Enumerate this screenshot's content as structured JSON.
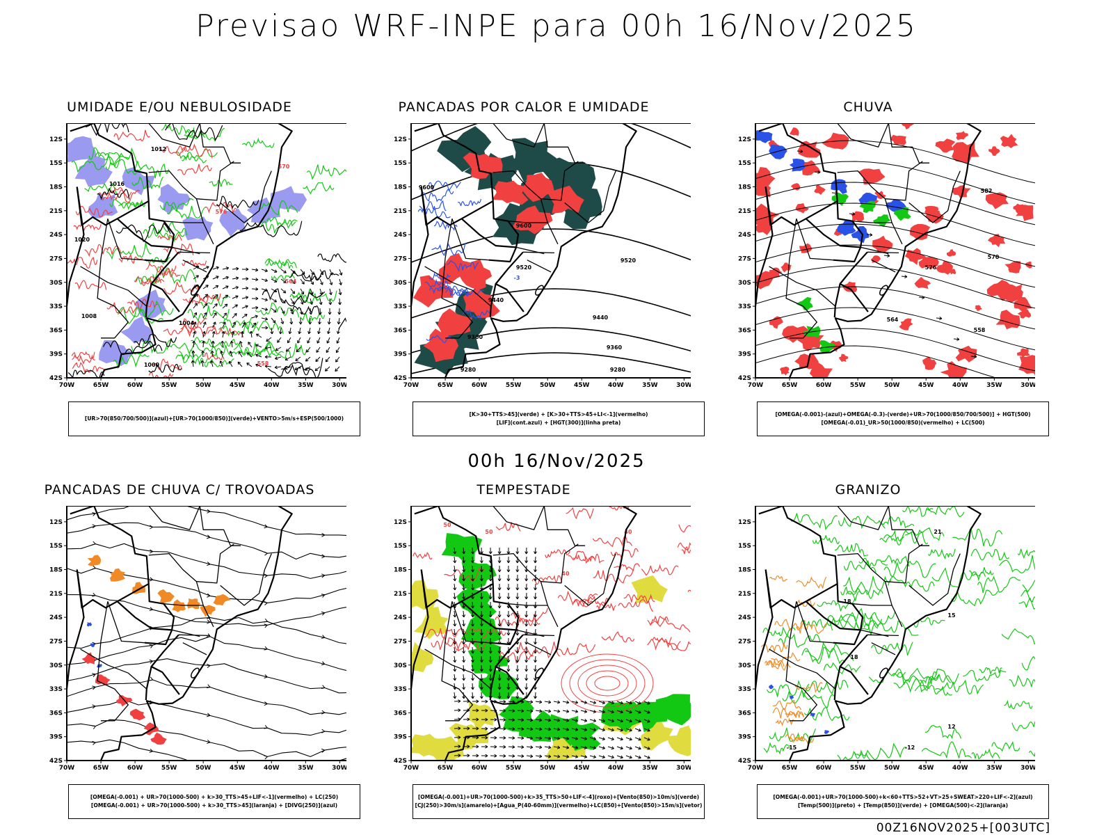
{
  "header": {
    "title": "Previsao WRF-INPE  para 00h 16/Nov/2025"
  },
  "mid_title": "00h 16/Nov/2025",
  "footer": "00Z16NOV2025+[003UTC]",
  "axes": {
    "lat_labels": [
      "12S",
      "15S",
      "18S",
      "21S",
      "24S",
      "27S",
      "30S",
      "33S",
      "36S",
      "39S",
      "42S"
    ],
    "lon_labels": [
      "70W",
      "65W",
      "60W",
      "55W",
      "50W",
      "45W",
      "40W",
      "35W",
      "30W"
    ]
  },
  "panels": [
    {
      "title": "UMIDADE E/OU NEBULOSIDADE",
      "legend": [
        "[UR>70(850/700/500)](azul)+[UR>70(1000/850)](verde)+VENTO>5m/s+ESP(500/1000)"
      ],
      "contour_labels": [
        "1012",
        "1016",
        "1008",
        "1004",
        "1000",
        "1020",
        "576",
        "570",
        "564",
        "558"
      ]
    },
    {
      "title": "PANCADAS POR CALOR E UMIDADE",
      "legend": [
        "[K>30+TTS>45](verde) + [K>30+TTS>45+LI<-1](vermelho)",
        "[LIF](cont.azul) + [HGT(300)](linha preta)"
      ],
      "contour_labels": [
        "9600",
        "9520",
        "9440",
        "9360",
        "9280",
        "-3"
      ]
    },
    {
      "title": "CHUVA",
      "legend": [
        "[OMEGA(-0.001)-(azul)+OMEGA(-0.3)-(verde)+UR>70(1000/850/700/500)] + HGT(500)",
        "[OMEGA(-0.01)_UR>50(1000/850)(vermelho) + LC(500)"
      ],
      "contour_labels": [
        "582",
        "576",
        "570",
        "564",
        "558"
      ]
    },
    {
      "title": "PANCADAS DE CHUVA C/ TROVOADAS",
      "legend": [
        "[OMEGA(-0.001) + UR>70(1000-500) + k>30_TTS>45+LIF<-1](vermelho) + LC(250)",
        "[OMEGA(-0.001) + UR>70(1000-500) + k>30_TTS>45](laranja) + [DIVG(250)](azul)"
      ],
      "contour_labels": []
    },
    {
      "title": "TEMPESTADE",
      "legend": [
        "[OMEGA(-0.001)+UR>70(1000-500)+k>35_TTS>50+LIF<-4](roxo)+[Vento(850)>10m/s](verde)",
        "[CJ(250)>30m/s](amarelo)+[Agua_P(40-60mm)](vermelho)+LC(850)+[Vento(850)>15m/s](vetor)"
      ],
      "contour_labels": [
        "50",
        "40"
      ]
    },
    {
      "title": "GRANIZO",
      "legend": [
        "[OMEGA(-0.001)+UR>70(1000-500)+k<60+TTS>52+VT>25+SWEAT>220+LIF<-2](azul)",
        "[Temp(500)](preto) + [Temp(850)](verde) + [OMEGA(500)<-2](laranja)"
      ],
      "contour_labels": [
        "21",
        "18",
        "15",
        "12",
        "-15",
        "-12"
      ]
    }
  ],
  "colors": {
    "blue": "#2a52e6",
    "green": "#12c812",
    "red": "#f04040",
    "orange": "#f08a26",
    "purple": "#9a9af0",
    "teal": "#1e4a48",
    "yellow": "#e0dc40",
    "black": "#000000"
  }
}
